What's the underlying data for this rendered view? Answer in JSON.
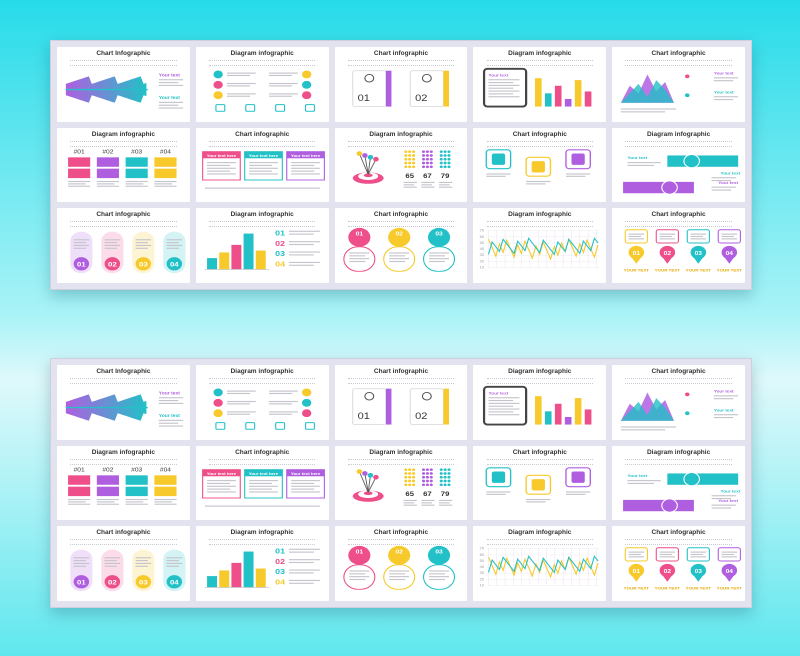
{
  "colors": {
    "purple": "#b05ee0",
    "teal": "#21c1c7",
    "yellow": "#f7c92a",
    "pink": "#ee4f8a",
    "cyan_bg": "#27dbe9"
  },
  "slides": [
    {
      "title": "Chart Infographic",
      "kind": "wave",
      "labels": [
        "Your text",
        "Your text"
      ]
    },
    {
      "title": "Diagram infographic",
      "kind": "dots-icons",
      "labels": []
    },
    {
      "title": "Chart infographic",
      "kind": "two-cards",
      "labels": [
        "01",
        "02"
      ]
    },
    {
      "title": "Diagram infographic",
      "kind": "tablet-bars",
      "labels": [
        "Your text"
      ]
    },
    {
      "title": "Chart infographic",
      "kind": "area",
      "labels": [
        "Your text",
        "Your text"
      ]
    },
    {
      "title": "Diagram infographic",
      "kind": "hash-cols",
      "labels": [
        "#01",
        "#02",
        "#03",
        "#04"
      ]
    },
    {
      "title": "Chart infographic",
      "kind": "three-boxes",
      "labels": [
        "Your text here",
        "Your text here",
        "Your text here"
      ]
    },
    {
      "title": "Diagram infographic",
      "kind": "darts",
      "labels": [
        "65",
        "67",
        "79"
      ]
    },
    {
      "title": "Chart infographic",
      "kind": "icon-squares",
      "labels": []
    },
    {
      "title": "Diagram infographic",
      "kind": "world-banners",
      "labels": [
        "Your text",
        "Your text",
        "Your text"
      ]
    },
    {
      "title": "Chart infographic",
      "kind": "ovals",
      "labels": [
        "01",
        "02",
        "03",
        "04"
      ]
    },
    {
      "title": "Diagram infographic",
      "kind": "bars-list",
      "labels": [
        "01",
        "02",
        "03",
        "04"
      ]
    },
    {
      "title": "Chart infographic",
      "kind": "circles",
      "labels": [
        "01",
        "02",
        "03"
      ]
    },
    {
      "title": "Diagram infographic",
      "kind": "zigzag",
      "labels": [
        "70",
        "60",
        "50",
        "40",
        "30",
        "20",
        "10"
      ]
    },
    {
      "title": "Chart infographic",
      "kind": "pins",
      "labels": [
        "01",
        "02",
        "03",
        "04",
        "YOUR TEXT",
        "YOUR TEXT",
        "YOUR TEXT",
        "YOUR TEXT"
      ]
    }
  ]
}
